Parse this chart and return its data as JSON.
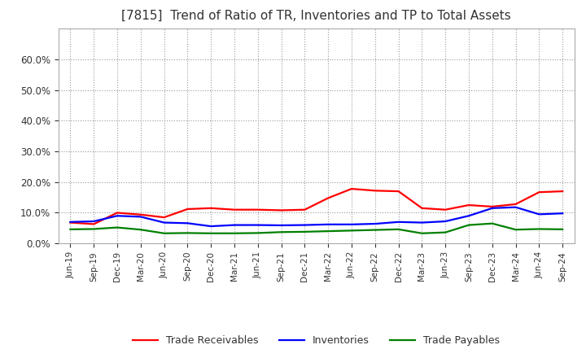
{
  "title": "[7815]  Trend of Ratio of TR, Inventories and TP to Total Assets",
  "x_labels": [
    "Jun-19",
    "Sep-19",
    "Dec-19",
    "Mar-20",
    "Jun-20",
    "Sep-20",
    "Dec-20",
    "Mar-21",
    "Jun-21",
    "Sep-21",
    "Dec-21",
    "Mar-22",
    "Jun-22",
    "Sep-22",
    "Dec-22",
    "Mar-23",
    "Jun-23",
    "Sep-23",
    "Dec-23",
    "Mar-24",
    "Jun-24",
    "Sep-24"
  ],
  "trade_receivables": [
    0.068,
    0.063,
    0.1,
    0.094,
    0.085,
    0.112,
    0.115,
    0.11,
    0.11,
    0.108,
    0.11,
    0.148,
    0.178,
    0.172,
    0.17,
    0.115,
    0.11,
    0.125,
    0.12,
    0.128,
    0.167,
    0.17
  ],
  "inventories": [
    0.07,
    0.072,
    0.09,
    0.087,
    0.068,
    0.066,
    0.056,
    0.06,
    0.06,
    0.059,
    0.06,
    0.062,
    0.062,
    0.064,
    0.07,
    0.068,
    0.072,
    0.09,
    0.115,
    0.118,
    0.095,
    0.098
  ],
  "trade_payables": [
    0.046,
    0.047,
    0.052,
    0.045,
    0.033,
    0.034,
    0.033,
    0.033,
    0.034,
    0.037,
    0.038,
    0.04,
    0.042,
    0.044,
    0.046,
    0.033,
    0.036,
    0.06,
    0.065,
    0.045,
    0.047,
    0.046
  ],
  "tr_color": "#ff0000",
  "inv_color": "#0000ff",
  "tp_color": "#008000",
  "ylim": [
    0.0,
    0.7
  ],
  "yticks": [
    0.0,
    0.1,
    0.2,
    0.3,
    0.4,
    0.5,
    0.6
  ],
  "background_color": "#ffffff",
  "plot_bg_color": "#ffffff",
  "grid_color": "#999999",
  "title_fontsize": 11,
  "title_color": "#333333",
  "tick_color": "#333333",
  "legend_labels": [
    "Trade Receivables",
    "Inventories",
    "Trade Payables"
  ]
}
